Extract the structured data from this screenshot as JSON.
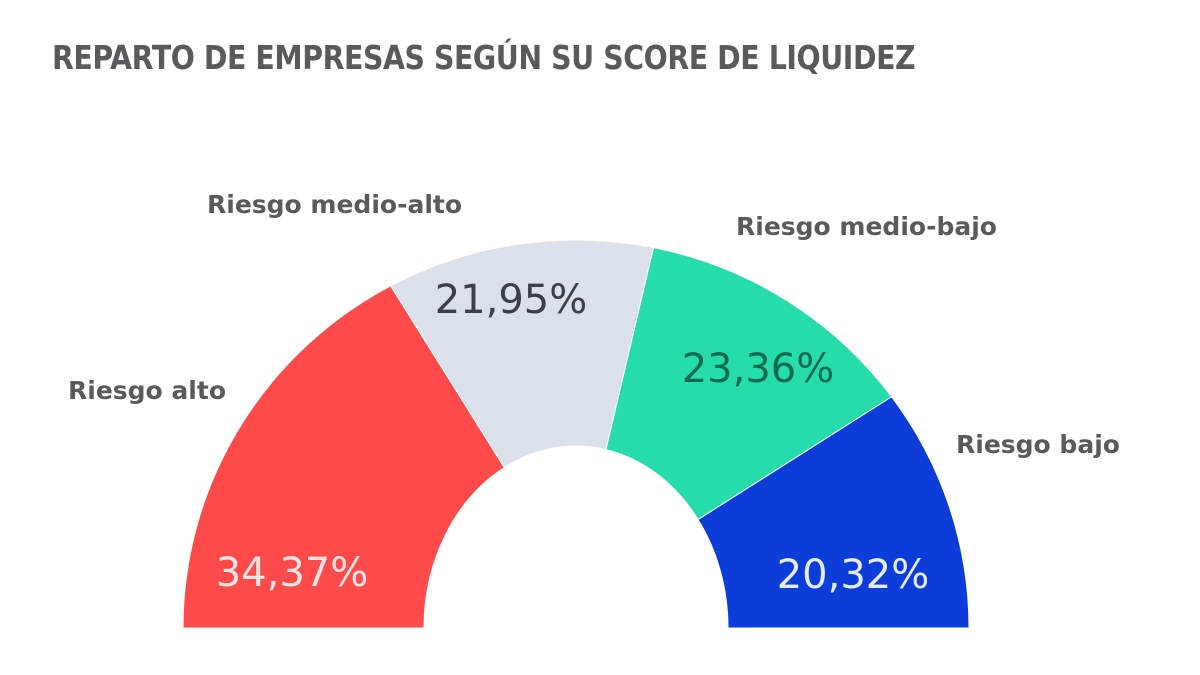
{
  "title": "REPARTO DE EMPRESAS SEGÚN SU SCORE DE LIQUIDEZ",
  "colors": {
    "riesgo_alto": "#fd4b4b",
    "riesgo_medio_alto": "#dbe1ea",
    "riesgo_medio_bajo": "#26dcaa",
    "riesgo_bajo": "#0c3dd8",
    "label_text": "#5a5a5c",
    "background": "#ffffff"
  },
  "chart_data": {
    "type": "pie",
    "subtype": "half-donut",
    "title": "REPARTO DE EMPRESAS SEGÚN SU SCORE DE LIQUIDEZ",
    "categories": [
      "Riesgo alto",
      "Riesgo medio-alto",
      "Riesgo medio-bajo",
      "Riesgo bajo"
    ],
    "values": [
      34.37,
      21.95,
      23.36,
      20.32
    ],
    "value_labels": [
      "34,37%",
      "21,95%",
      "23,36%",
      "20,32%"
    ],
    "unit": "%",
    "legend": "none (labels placed beside segments)",
    "slices": [
      {
        "label": "Riesgo alto",
        "value": 34.37,
        "display": "34,37%",
        "color": "#fd4b4b",
        "text_color": "#fde4e4"
      },
      {
        "label": "Riesgo medio-alto",
        "value": 21.95,
        "display": "21,95%",
        "color": "#dbe1ea",
        "text_color": "#3a3f4a"
      },
      {
        "label": "Riesgo medio-bajo",
        "value": 23.36,
        "display": "23,36%",
        "color": "#26dcaa",
        "text_color": "#0f6b4e"
      },
      {
        "label": "Riesgo bajo",
        "value": 20.32,
        "display": "20,32%",
        "color": "#0c3dd8",
        "text_color": "#e6ecff"
      }
    ]
  }
}
